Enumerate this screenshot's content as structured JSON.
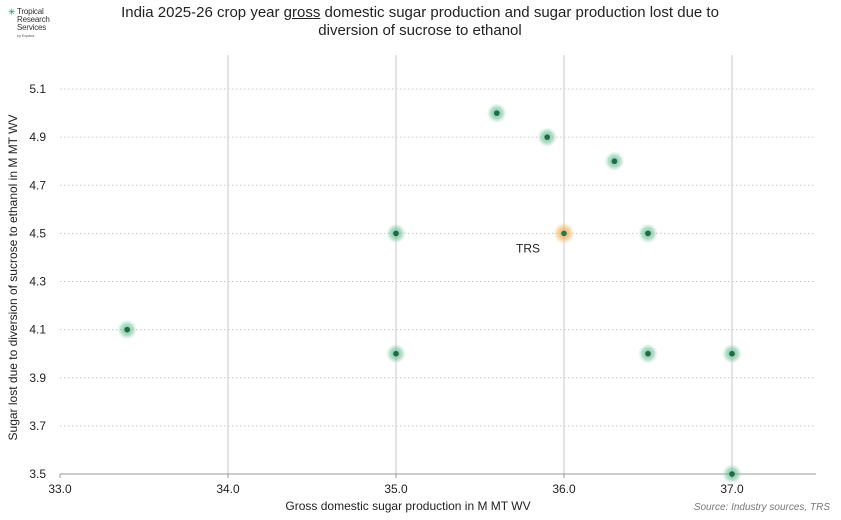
{
  "logo": {
    "star": "✳",
    "line1": "Tropical",
    "line2": "Research",
    "line3": "Services",
    "line4": "by Expana"
  },
  "title": {
    "part1": "India 2025-26 crop year ",
    "emphasis": "gross",
    "part2": " domestic sugar production and sugar production lost due to",
    "line2": "diversion of sucrose to ethanol"
  },
  "source": "Source: Industry sources, TRS",
  "colors": {
    "point_fill": "#1f6b48",
    "point_glow": "#5db58a",
    "highlight_fill": "#2a7a50",
    "highlight_glow": "#e8a54b",
    "grid": "#c8c8c8",
    "axis": "#999999"
  },
  "chart_data": {
    "type": "scatter",
    "title": "India 2025-26 crop year gross domestic sugar production and sugar production lost due to diversion of sucrose to ethanol",
    "xlabel": "Gross domestic sugar production in M MT WV",
    "ylabel": "Sugar lost due to diversion of sucrose to ethanol in M MT WV",
    "xlim": [
      33.0,
      37.5
    ],
    "ylim": [
      3.5,
      5.2
    ],
    "x_ticks": [
      33.0,
      34.0,
      35.0,
      36.0,
      37.0
    ],
    "x_tick_labels": [
      "33.0",
      "34.0",
      "35.0",
      "36.0",
      "37.0"
    ],
    "y_ticks": [
      3.5,
      3.7,
      3.9,
      4.1,
      4.3,
      4.5,
      4.7,
      4.9,
      5.1
    ],
    "y_tick_labels": [
      "3.5",
      "3.7",
      "3.9",
      "4.1",
      "4.3",
      "4.5",
      "4.7",
      "4.9",
      "5.1"
    ],
    "vertical_grid": true,
    "horizontal_grid": "dotted",
    "points": [
      {
        "x": 33.4,
        "y": 4.1
      },
      {
        "x": 35.0,
        "y": 4.5
      },
      {
        "x": 35.0,
        "y": 4.0
      },
      {
        "x": 35.6,
        "y": 5.0
      },
      {
        "x": 35.9,
        "y": 4.9
      },
      {
        "x": 36.3,
        "y": 4.8
      },
      {
        "x": 36.5,
        "y": 4.5
      },
      {
        "x": 36.5,
        "y": 4.0
      },
      {
        "x": 37.0,
        "y": 4.0
      },
      {
        "x": 37.0,
        "y": 3.5
      }
    ],
    "highlight": {
      "x": 36.0,
      "y": 4.5,
      "label": "TRS"
    }
  }
}
